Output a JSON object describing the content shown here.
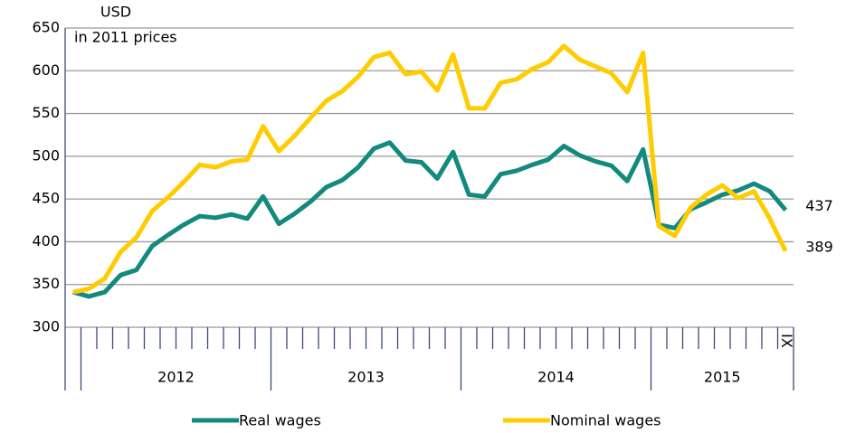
{
  "chart_data": {
    "type": "line",
    "y_axis_label": [
      "USD",
      "in 2011  prices"
    ],
    "categories": [
      null,
      null,
      null,
      null,
      null,
      null,
      null,
      null,
      null,
      null,
      null,
      null,
      null,
      null,
      null,
      null,
      null,
      null,
      null,
      null,
      null,
      null,
      null,
      null,
      null,
      null,
      null,
      null,
      null,
      null,
      null,
      null,
      null,
      null,
      null,
      null,
      null,
      null,
      null,
      null,
      null,
      null,
      null,
      null,
      null,
      "IX"
    ],
    "year_labels": [
      "2012",
      "2013",
      "2014",
      "2015"
    ],
    "series": [
      {
        "name": "Real wages",
        "color": "#138a7e",
        "values": [
          341,
          336,
          341,
          361,
          367,
          395,
          408,
          420,
          430,
          428,
          432,
          427,
          453,
          421,
          433,
          447,
          464,
          472,
          487,
          509,
          516,
          495,
          493,
          474,
          505,
          455,
          453,
          479,
          483,
          490,
          496,
          512,
          501,
          494,
          489,
          471,
          508,
          420,
          416,
          438,
          446,
          455,
          460,
          468,
          459,
          437
        ]
      },
      {
        "name": "Nominal wages",
        "color": "#ffcc00",
        "values": [
          341,
          345,
          357,
          388,
          405,
          436,
          452,
          470,
          490,
          487,
          494,
          496,
          535,
          506,
          524,
          545,
          565,
          576,
          593,
          616,
          621,
          596,
          599,
          577,
          619,
          556,
          556,
          586,
          590,
          602,
          610,
          629,
          613,
          605,
          597,
          575,
          621,
          418,
          407,
          440,
          455,
          466,
          451,
          459,
          427,
          389
        ]
      }
    ],
    "ylim": [
      300,
      650
    ],
    "yticks": [
      300,
      350,
      400,
      450,
      500,
      550,
      600,
      650
    ],
    "grid": true
  }
}
